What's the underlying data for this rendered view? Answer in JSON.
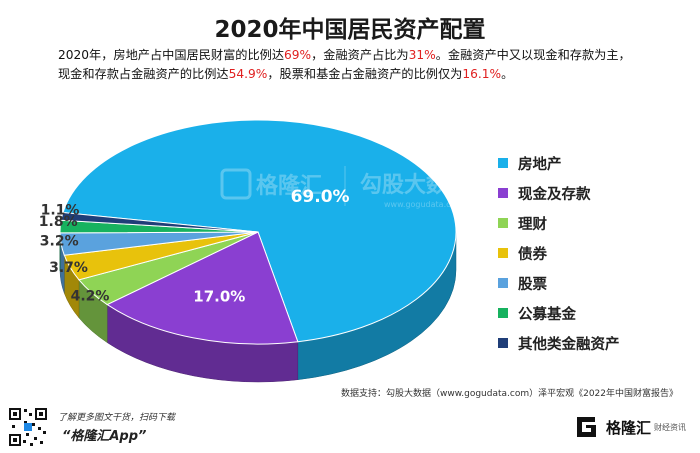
{
  "chart_data": {
    "type": "pie",
    "title": "2020年中国居民资产配置",
    "categories": [
      "房地产",
      "现金及存款",
      "理财",
      "债券",
      "股票",
      "公募基金",
      "其他类金融资产"
    ],
    "values": [
      69.0,
      17.0,
      4.2,
      3.7,
      3.2,
      1.8,
      1.1
    ],
    "labels": [
      "69.0%",
      "17.0%",
      "4.2%",
      "3.7%",
      "3.2%",
      "1.8%",
      "1.1%"
    ],
    "colors": [
      "#1ab0ea",
      "#8a3fd1",
      "#8fd455",
      "#e8c20c",
      "#5aa2de",
      "#17b25f",
      "#1f3e78"
    ],
    "legend_position": "right"
  },
  "description": {
    "line1": {
      "p1": "2020年，房地产占中国居民财富的比例达",
      "v1": "69%",
      "p2": "，金融资产占比为",
      "v2": "31%",
      "p3": "。金融资产中又以现金和存款为主，"
    },
    "line2": {
      "p1": "现金和存款占金融资产的比例达",
      "v1": "54.9%",
      "p2": "，股票和基金占金融资产的比例仅为",
      "v2": "16.1%",
      "p3": "。"
    }
  },
  "watermark": {
    "brand": "格隆汇",
    "name": "勾股大数据",
    "url": "www.gogudata.com"
  },
  "source": "数据支持：勾股大数据（www.gogudata.com）泽平宏观《2022年中国财富报告》",
  "footer": {
    "scan_text": "了解更多图文干货，扫码下载",
    "app_name": "“格隆汇App”",
    "logo_text": "格隆汇",
    "logo_sub": "财经资讯"
  }
}
